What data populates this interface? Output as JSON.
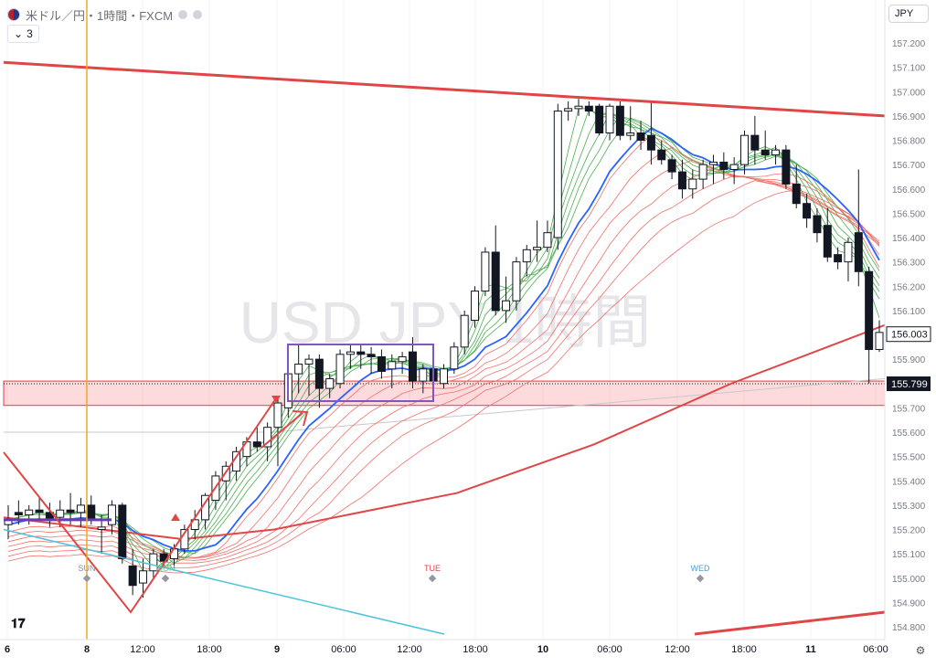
{
  "header": {
    "symbol_label": "米ドル／円・1時間・FXCM",
    "indicator_count": "3",
    "currency": "JPY"
  },
  "chart_data": {
    "type": "candlestick",
    "watermark": "USD JPY 1時間",
    "ylim": [
      154.75,
      157.3
    ],
    "y_ticks": [
      157.2,
      157.1,
      157.0,
      156.9,
      156.8,
      156.7,
      156.6,
      156.5,
      156.4,
      156.3,
      156.2,
      156.1,
      156.0,
      155.9,
      155.8,
      155.7,
      155.6,
      155.5,
      155.4,
      155.3,
      155.2,
      155.1,
      155.0,
      154.9,
      154.8
    ],
    "x_tick_labels": [
      "6",
      "8",
      "12:00",
      "18:00",
      "9",
      "06:00",
      "12:00",
      "18:00",
      "10",
      "06:00",
      "12:00",
      "18:00",
      "11",
      "06:00"
    ],
    "day_markers": [
      "SUN",
      "MON",
      "TUE",
      "WED"
    ],
    "price_labels": {
      "current": "156.003",
      "line": "155.799"
    },
    "candles": [
      [
        155.22,
        155.3,
        155.16,
        155.24
      ],
      [
        155.27,
        155.32,
        155.22,
        155.26
      ],
      [
        155.26,
        155.3,
        155.22,
        155.28
      ],
      [
        155.28,
        155.33,
        155.24,
        155.27
      ],
      [
        155.27,
        155.31,
        155.21,
        155.24
      ],
      [
        155.25,
        155.32,
        155.21,
        155.28
      ],
      [
        155.28,
        155.35,
        155.22,
        155.27
      ],
      [
        155.27,
        155.33,
        155.21,
        155.3
      ],
      [
        155.3,
        155.34,
        155.22,
        155.24
      ],
      [
        155.2,
        155.26,
        155.1,
        155.21
      ],
      [
        155.22,
        155.32,
        155.18,
        155.3
      ],
      [
        155.3,
        155.31,
        155.06,
        155.08
      ],
      [
        155.05,
        155.12,
        154.93,
        154.97
      ],
      [
        154.98,
        155.08,
        154.92,
        155.03
      ],
      [
        155.03,
        155.12,
        155.0,
        155.1
      ],
      [
        155.1,
        155.12,
        155.05,
        155.07
      ],
      [
        155.08,
        155.14,
        155.04,
        155.12
      ],
      [
        155.12,
        155.22,
        155.1,
        155.2
      ],
      [
        155.2,
        155.28,
        155.16,
        155.24
      ],
      [
        155.24,
        155.35,
        155.2,
        155.34
      ],
      [
        155.32,
        155.44,
        155.28,
        155.42
      ],
      [
        155.4,
        155.48,
        155.32,
        155.46
      ],
      [
        155.44,
        155.54,
        155.4,
        155.52
      ],
      [
        155.5,
        155.58,
        155.46,
        155.56
      ],
      [
        155.56,
        155.62,
        155.52,
        155.54
      ],
      [
        155.54,
        155.64,
        155.48,
        155.62
      ],
      [
        155.62,
        155.74,
        155.46,
        155.72
      ],
      [
        155.7,
        155.86,
        155.66,
        155.84
      ],
      [
        155.84,
        155.96,
        155.76,
        155.88
      ],
      [
        155.88,
        155.92,
        155.75,
        155.9
      ],
      [
        155.9,
        155.92,
        155.7,
        155.78
      ],
      [
        155.78,
        155.84,
        155.74,
        155.82
      ],
      [
        155.8,
        155.94,
        155.78,
        155.92
      ],
      [
        155.92,
        155.96,
        155.86,
        155.93
      ],
      [
        155.93,
        155.96,
        155.86,
        155.92
      ],
      [
        155.92,
        155.95,
        155.84,
        155.91
      ],
      [
        155.91,
        155.94,
        155.82,
        155.85
      ],
      [
        155.86,
        155.92,
        155.78,
        155.89
      ],
      [
        155.89,
        155.93,
        155.84,
        155.91
      ],
      [
        155.93,
        155.99,
        155.78,
        155.81
      ],
      [
        155.81,
        155.88,
        155.76,
        155.86
      ],
      [
        155.86,
        155.9,
        155.79,
        155.81
      ],
      [
        155.8,
        155.88,
        155.78,
        155.86
      ],
      [
        155.86,
        155.97,
        155.84,
        155.95
      ],
      [
        155.95,
        156.1,
        155.92,
        156.08
      ],
      [
        156.06,
        156.2,
        156.03,
        156.18
      ],
      [
        156.18,
        156.36,
        156.16,
        156.34
      ],
      [
        156.34,
        156.45,
        156.08,
        156.1
      ],
      [
        156.1,
        156.24,
        156.05,
        156.14
      ],
      [
        156.14,
        156.32,
        156.1,
        156.3
      ],
      [
        156.3,
        156.37,
        156.24,
        156.35
      ],
      [
        156.35,
        156.47,
        156.3,
        156.36
      ],
      [
        156.36,
        156.47,
        156.34,
        156.42
      ],
      [
        156.4,
        156.95,
        156.35,
        156.92
      ],
      [
        156.92,
        156.96,
        156.88,
        156.93
      ],
      [
        156.93,
        156.97,
        156.9,
        156.94
      ],
      [
        156.94,
        156.96,
        156.9,
        156.92
      ],
      [
        156.94,
        156.95,
        156.82,
        156.83
      ],
      [
        156.83,
        156.95,
        156.8,
        156.94
      ],
      [
        156.94,
        156.96,
        156.8,
        156.82
      ],
      [
        156.82,
        156.94,
        156.8,
        156.83
      ],
      [
        156.83,
        156.88,
        156.76,
        156.8
      ],
      [
        156.82,
        156.96,
        156.7,
        156.76
      ],
      [
        156.76,
        156.8,
        156.7,
        156.72
      ],
      [
        156.72,
        156.74,
        156.64,
        156.67
      ],
      [
        156.67,
        156.72,
        156.56,
        156.6
      ],
      [
        156.6,
        156.68,
        156.56,
        156.64
      ],
      [
        156.64,
        156.72,
        156.6,
        156.7
      ],
      [
        156.7,
        156.74,
        156.62,
        156.71
      ],
      [
        156.71,
        156.75,
        156.64,
        156.68
      ],
      [
        156.68,
        156.73,
        156.62,
        156.7
      ],
      [
        156.7,
        156.84,
        156.66,
        156.82
      ],
      [
        156.82,
        156.9,
        156.7,
        156.76
      ],
      [
        156.76,
        156.84,
        156.72,
        156.74
      ],
      [
        156.74,
        156.78,
        156.7,
        156.76
      ],
      [
        156.76,
        156.78,
        156.6,
        156.62
      ],
      [
        156.62,
        156.7,
        156.52,
        156.54
      ],
      [
        156.54,
        156.58,
        156.44,
        156.48
      ],
      [
        156.49,
        156.52,
        156.38,
        156.42
      ],
      [
        156.45,
        156.52,
        156.3,
        156.32
      ],
      [
        156.33,
        156.36,
        156.27,
        156.3
      ],
      [
        156.3,
        156.4,
        156.22,
        156.38
      ],
      [
        156.42,
        156.68,
        156.2,
        156.26
      ],
      [
        156.26,
        156.28,
        155.8,
        155.94
      ],
      [
        155.94,
        156.06,
        155.93,
        156.01
      ]
    ]
  }
}
